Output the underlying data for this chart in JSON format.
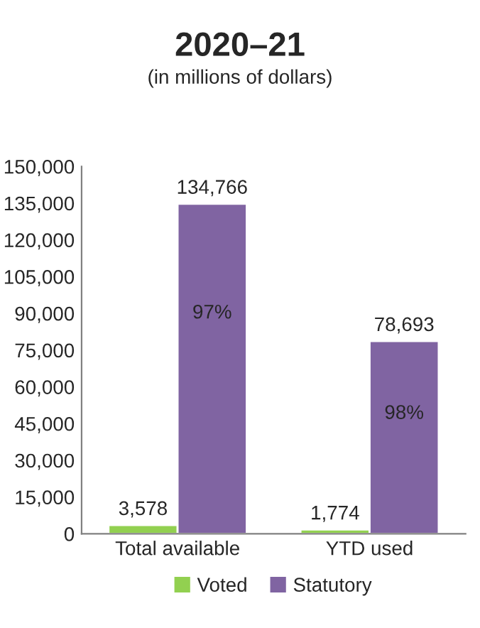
{
  "chart_data": {
    "type": "bar",
    "title": "2020–21",
    "subtitle": "(in millions of dollars)",
    "categories": [
      "Total available",
      "YTD used"
    ],
    "series": [
      {
        "name": "Voted",
        "color": "#92d050",
        "values": [
          3578,
          1774
        ],
        "value_labels": [
          "3,578",
          "1,774"
        ]
      },
      {
        "name": "Statutory",
        "color": "#8064a2",
        "values": [
          134766,
          78693
        ],
        "value_labels": [
          "134,766",
          "78,693"
        ]
      }
    ],
    "annotations": [
      {
        "text": "97%",
        "x": "Total available",
        "y": 90000
      },
      {
        "text": "98%",
        "x": "YTD used",
        "y": 49000
      }
    ],
    "ylim": [
      0,
      150000
    ],
    "yticks": [
      {
        "value": 0,
        "label": "0"
      },
      {
        "value": 15000,
        "label": "15,000"
      },
      {
        "value": 30000,
        "label": "30,000"
      },
      {
        "value": 45000,
        "label": "45,000"
      },
      {
        "value": 60000,
        "label": "60,000"
      },
      {
        "value": 75000,
        "label": "75,000"
      },
      {
        "value": 90000,
        "label": "90,000"
      },
      {
        "value": 105000,
        "label": "105,000"
      },
      {
        "value": 120000,
        "label": "120,000"
      },
      {
        "value": 135000,
        "label": "135,000"
      },
      {
        "value": 150000,
        "label": "150,000"
      }
    ],
    "grid": false,
    "legend": "bottom"
  }
}
